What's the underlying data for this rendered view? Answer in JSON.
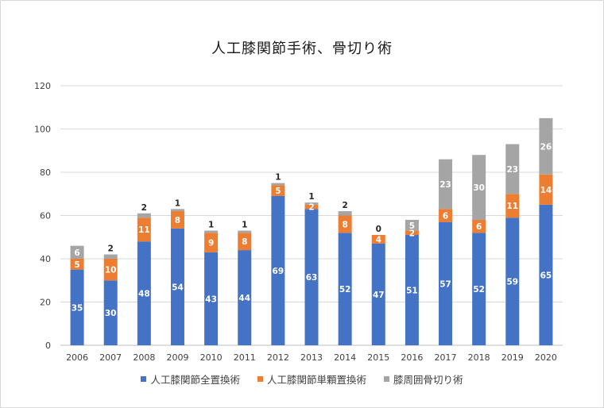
{
  "chart_data": {
    "type": "bar",
    "stacked": true,
    "title": "人工膝関節手術、骨切り術",
    "xlabel": "",
    "ylabel": "",
    "ylim": [
      0,
      120
    ],
    "yticks": [
      0,
      20,
      40,
      60,
      80,
      100,
      120
    ],
    "grid": true,
    "legend_position": "bottom",
    "categories": [
      "2006",
      "2007",
      "2008",
      "2009",
      "2010",
      "2011",
      "2012",
      "2013",
      "2014",
      "2015",
      "2016",
      "2017",
      "2018",
      "2019",
      "2020"
    ],
    "series": [
      {
        "name": "人工膝関節全置換術",
        "color": "#4472c4",
        "label_color": "#ffffff",
        "values": [
          35,
          30,
          48,
          54,
          43,
          44,
          69,
          63,
          52,
          47,
          51,
          57,
          52,
          59,
          65
        ]
      },
      {
        "name": "人工膝関節単顆置換術",
        "color": "#ed7d31",
        "label_color": "#ffffff",
        "values": [
          5,
          10,
          11,
          8,
          9,
          8,
          5,
          2,
          8,
          4,
          2,
          6,
          6,
          11,
          14
        ]
      },
      {
        "name": "膝周囲骨切り術",
        "color": "#a5a5a5",
        "label_color": "#ffffff",
        "values": [
          6,
          2,
          2,
          1,
          1,
          1,
          1,
          1,
          2,
          0,
          5,
          23,
          30,
          23,
          26
        ]
      }
    ]
  }
}
